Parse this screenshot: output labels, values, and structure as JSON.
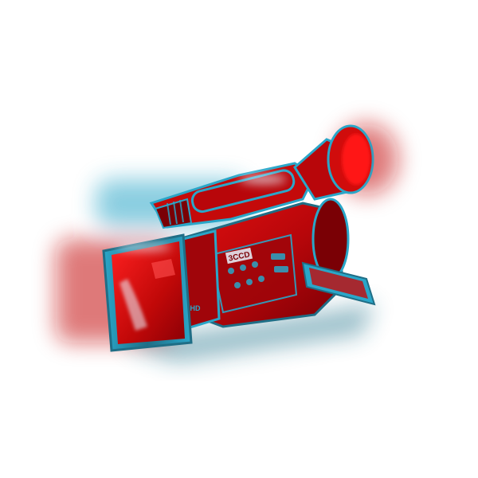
{
  "image": {
    "subject": "camcorder-photo",
    "background_color": "#ffffff",
    "colors": {
      "body_red": "#c40a0a",
      "dark_red": "#7a0005",
      "bright_red": "#ff1414",
      "cyan_edge": "#2aa6c8",
      "teal_shadow": "#1f6e86",
      "highlight": "#e8f6ff"
    }
  },
  "labels": {
    "model_badge": "3CCD",
    "lens_badge": "HD"
  }
}
